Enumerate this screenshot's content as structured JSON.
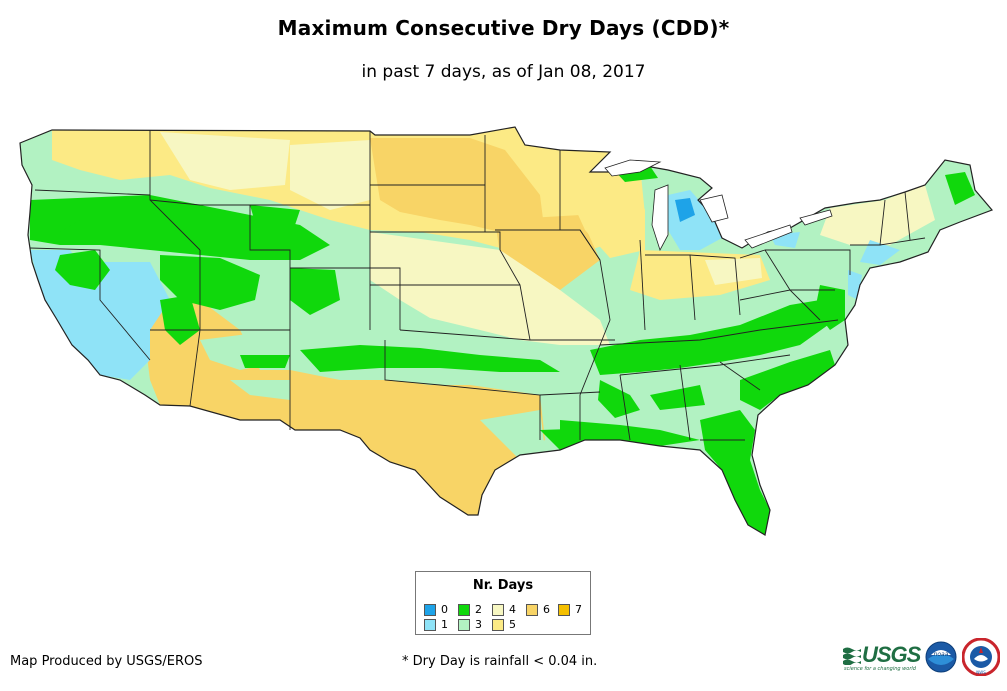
{
  "title": "Maximum Consecutive Dry Days (CDD)*",
  "subtitle": "in past 7 days, as of Jan 08, 2017",
  "map": {
    "region": "Contiguous United States",
    "variable": "Maximum Consecutive Dry Days",
    "period_days": 7,
    "as_of": "Jan 08, 2017"
  },
  "legend": {
    "title": "Nr. Days",
    "items": [
      {
        "label": "0",
        "color": "#1ea3e8"
      },
      {
        "label": "1",
        "color": "#8fe3f7"
      },
      {
        "label": "2",
        "color": "#10d80c"
      },
      {
        "label": "3",
        "color": "#b2f2c2"
      },
      {
        "label": "4",
        "color": "#f7f7c2"
      },
      {
        "label": "5",
        "color": "#fcea85"
      },
      {
        "label": "6",
        "color": "#f8d466"
      },
      {
        "label": "7",
        "color": "#f5c000"
      }
    ]
  },
  "footer": {
    "credit": "Map Produced by USGS/EROS",
    "footnote": "* Dry Day is rainfall < 0.04 in."
  },
  "logos": {
    "usgs": "USGS",
    "usgs_tagline": "science for a changing world",
    "noaa": "noaa",
    "nws": "NWS"
  }
}
